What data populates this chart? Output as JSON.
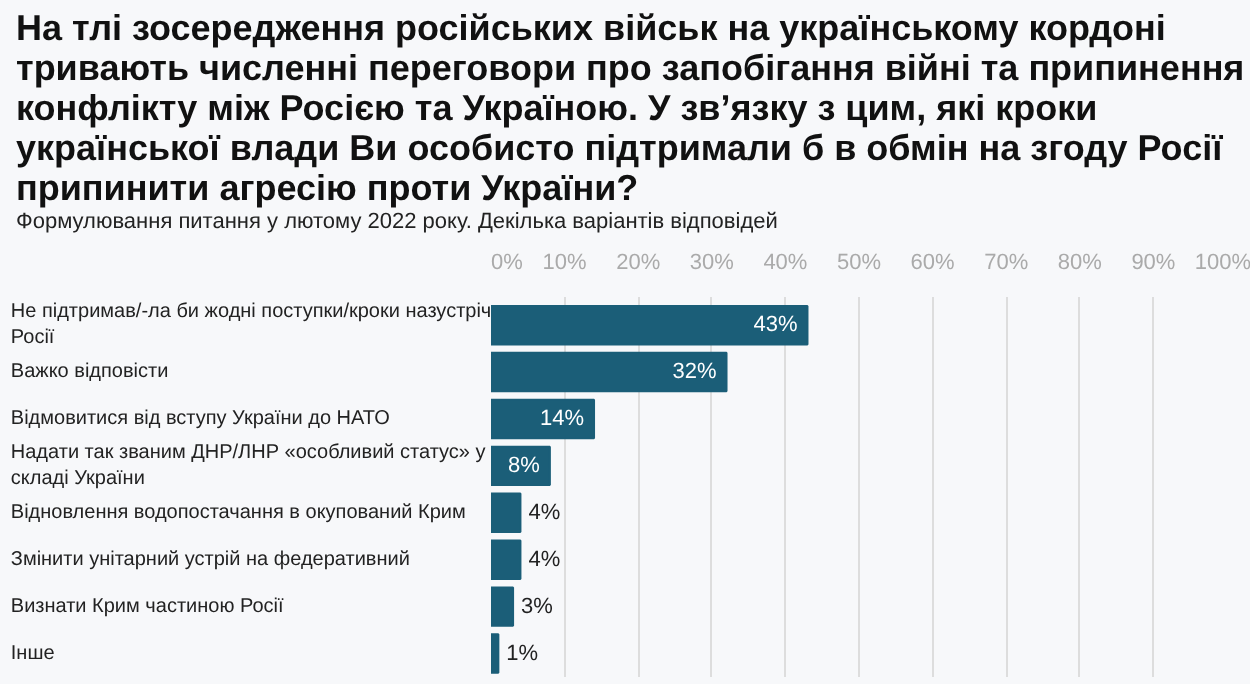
{
  "chart_data": {
    "type": "bar",
    "orientation": "horizontal",
    "title": "На тлі зосередження російських військ на українському кордоні тривають численні переговори про запобігання війні та припинення конфлікту між Росією та Україною. У зв’язку з цим, які кроки української влади Ви особисто підтримали б в обмін на згоду Росії припинити агресію проти України?",
    "subtitle": "Формулювання питання у лютому 2022 року. Декілька варіантів відповідей",
    "categories": [
      "Не підтримав/-ла би жодні поступки/кроки назустріч Росії",
      "Важко відповісти",
      "Відмовитися від вступу України до НАТО",
      "Надати так званим ДНР/ЛНР «особливий статус» у складі України",
      "Відновлення водопостачання в окупований Крим",
      "Змінити унітарний устрій на федеративний",
      "Визнати Крим частиною Росії",
      "Інше"
    ],
    "values": [
      43,
      32,
      14,
      8,
      4,
      4,
      3,
      1
    ],
    "color": "#1b5e78",
    "value_labels": [
      "43%",
      "32%",
      "14%",
      "8%",
      "4%",
      "4%",
      "3%",
      "1%"
    ],
    "xlim": [
      0,
      100
    ],
    "xticks": [
      {
        "value": 0,
        "label": "0%"
      },
      {
        "value": 10,
        "label": "10%"
      },
      {
        "value": 20,
        "label": "20%"
      },
      {
        "value": 30,
        "label": "30%"
      },
      {
        "value": 40,
        "label": "40%"
      },
      {
        "value": 50,
        "label": "50%"
      },
      {
        "value": 60,
        "label": "60%"
      },
      {
        "value": 70,
        "label": "70%"
      },
      {
        "value": 80,
        "label": "80%"
      },
      {
        "value": 90,
        "label": "90%"
      },
      {
        "value": 100,
        "label": "100%"
      }
    ],
    "grid": "x"
  }
}
